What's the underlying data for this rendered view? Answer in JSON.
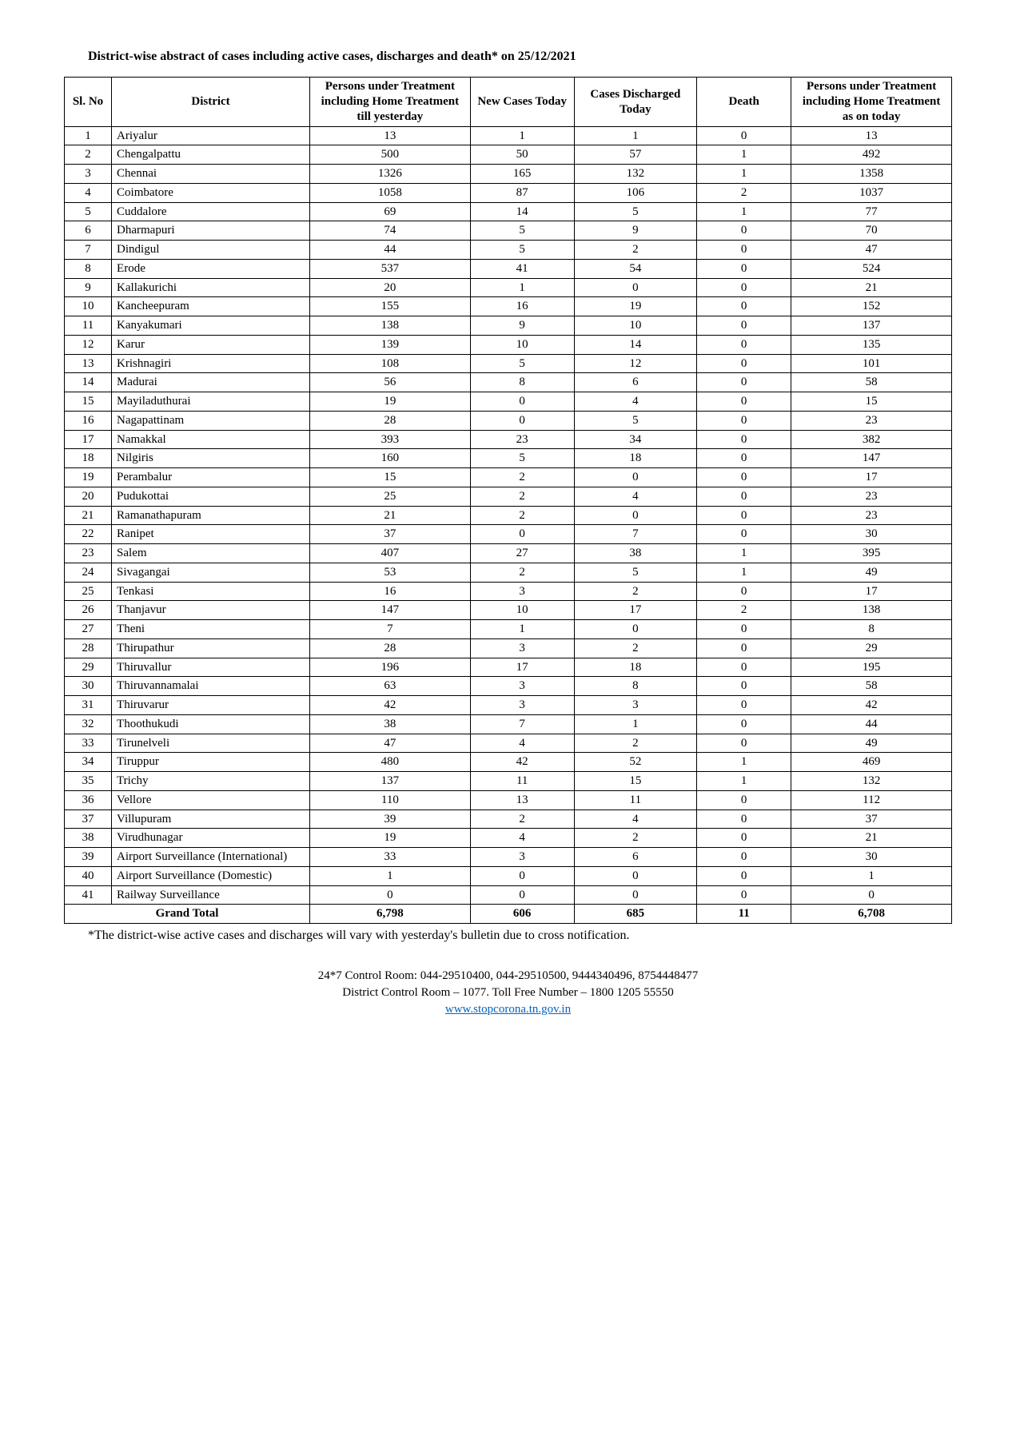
{
  "title": "District-wise abstract of cases including active cases, discharges and death* on 25/12/2021",
  "columns": [
    "Sl. No",
    "District",
    "Persons under Treatment including Home Treatment till yesterday",
    "New Cases Today",
    "Cases Discharged Today",
    "Death",
    "Persons under Treatment including Home Treatment as on today"
  ],
  "rows": [
    {
      "sl": "1",
      "district": "Ariyalur",
      "a": "13",
      "b": "1",
      "c": "1",
      "d": "0",
      "e": "13"
    },
    {
      "sl": "2",
      "district": "Chengalpattu",
      "a": "500",
      "b": "50",
      "c": "57",
      "d": "1",
      "e": "492"
    },
    {
      "sl": "3",
      "district": "Chennai",
      "a": "1326",
      "b": "165",
      "c": "132",
      "d": "1",
      "e": "1358"
    },
    {
      "sl": "4",
      "district": "Coimbatore",
      "a": "1058",
      "b": "87",
      "c": "106",
      "d": "2",
      "e": "1037"
    },
    {
      "sl": "5",
      "district": "Cuddalore",
      "a": "69",
      "b": "14",
      "c": "5",
      "d": "1",
      "e": "77"
    },
    {
      "sl": "6",
      "district": "Dharmapuri",
      "a": "74",
      "b": "5",
      "c": "9",
      "d": "0",
      "e": "70"
    },
    {
      "sl": "7",
      "district": "Dindigul",
      "a": "44",
      "b": "5",
      "c": "2",
      "d": "0",
      "e": "47"
    },
    {
      "sl": "8",
      "district": "Erode",
      "a": "537",
      "b": "41",
      "c": "54",
      "d": "0",
      "e": "524"
    },
    {
      "sl": "9",
      "district": "Kallakurichi",
      "a": "20",
      "b": "1",
      "c": "0",
      "d": "0",
      "e": "21"
    },
    {
      "sl": "10",
      "district": "Kancheepuram",
      "a": "155",
      "b": "16",
      "c": "19",
      "d": "0",
      "e": "152"
    },
    {
      "sl": "11",
      "district": "Kanyakumari",
      "a": "138",
      "b": "9",
      "c": "10",
      "d": "0",
      "e": "137"
    },
    {
      "sl": "12",
      "district": "Karur",
      "a": "139",
      "b": "10",
      "c": "14",
      "d": "0",
      "e": "135"
    },
    {
      "sl": "13",
      "district": "Krishnagiri",
      "a": "108",
      "b": "5",
      "c": "12",
      "d": "0",
      "e": "101"
    },
    {
      "sl": "14",
      "district": "Madurai",
      "a": "56",
      "b": "8",
      "c": "6",
      "d": "0",
      "e": "58"
    },
    {
      "sl": "15",
      "district": "Mayiladuthurai",
      "a": "19",
      "b": "0",
      "c": "4",
      "d": "0",
      "e": "15"
    },
    {
      "sl": "16",
      "district": "Nagapattinam",
      "a": "28",
      "b": "0",
      "c": "5",
      "d": "0",
      "e": "23"
    },
    {
      "sl": "17",
      "district": "Namakkal",
      "a": "393",
      "b": "23",
      "c": "34",
      "d": "0",
      "e": "382"
    },
    {
      "sl": "18",
      "district": "Nilgiris",
      "a": "160",
      "b": "5",
      "c": "18",
      "d": "0",
      "e": "147"
    },
    {
      "sl": "19",
      "district": "Perambalur",
      "a": "15",
      "b": "2",
      "c": "0",
      "d": "0",
      "e": "17"
    },
    {
      "sl": "20",
      "district": "Pudukottai",
      "a": "25",
      "b": "2",
      "c": "4",
      "d": "0",
      "e": "23"
    },
    {
      "sl": "21",
      "district": "Ramanathapuram",
      "a": "21",
      "b": "2",
      "c": "0",
      "d": "0",
      "e": "23"
    },
    {
      "sl": "22",
      "district": "Ranipet",
      "a": "37",
      "b": "0",
      "c": "7",
      "d": "0",
      "e": "30"
    },
    {
      "sl": "23",
      "district": "Salem",
      "a": "407",
      "b": "27",
      "c": "38",
      "d": "1",
      "e": "395"
    },
    {
      "sl": "24",
      "district": "Sivagangai",
      "a": "53",
      "b": "2",
      "c": "5",
      "d": "1",
      "e": "49"
    },
    {
      "sl": "25",
      "district": "Tenkasi",
      "a": "16",
      "b": "3",
      "c": "2",
      "d": "0",
      "e": "17"
    },
    {
      "sl": "26",
      "district": "Thanjavur",
      "a": "147",
      "b": "10",
      "c": "17",
      "d": "2",
      "e": "138"
    },
    {
      "sl": "27",
      "district": "Theni",
      "a": "7",
      "b": "1",
      "c": "0",
      "d": "0",
      "e": "8"
    },
    {
      "sl": "28",
      "district": "Thirupathur",
      "a": "28",
      "b": "3",
      "c": "2",
      "d": "0",
      "e": "29"
    },
    {
      "sl": "29",
      "district": "Thiruvallur",
      "a": "196",
      "b": "17",
      "c": "18",
      "d": "0",
      "e": "195"
    },
    {
      "sl": "30",
      "district": "Thiruvannamalai",
      "a": "63",
      "b": "3",
      "c": "8",
      "d": "0",
      "e": "58"
    },
    {
      "sl": "31",
      "district": "Thiruvarur",
      "a": "42",
      "b": "3",
      "c": "3",
      "d": "0",
      "e": "42"
    },
    {
      "sl": "32",
      "district": "Thoothukudi",
      "a": "38",
      "b": "7",
      "c": "1",
      "d": "0",
      "e": "44"
    },
    {
      "sl": "33",
      "district": "Tirunelveli",
      "a": "47",
      "b": "4",
      "c": "2",
      "d": "0",
      "e": "49"
    },
    {
      "sl": "34",
      "district": "Tiruppur",
      "a": "480",
      "b": "42",
      "c": "52",
      "d": "1",
      "e": "469"
    },
    {
      "sl": "35",
      "district": "Trichy",
      "a": "137",
      "b": "11",
      "c": "15",
      "d": "1",
      "e": "132"
    },
    {
      "sl": "36",
      "district": "Vellore",
      "a": "110",
      "b": "13",
      "c": "11",
      "d": "0",
      "e": "112"
    },
    {
      "sl": "37",
      "district": "Villupuram",
      "a": "39",
      "b": "2",
      "c": "4",
      "d": "0",
      "e": "37"
    },
    {
      "sl": "38",
      "district": "Virudhunagar",
      "a": "19",
      "b": "4",
      "c": "2",
      "d": "0",
      "e": "21"
    },
    {
      "sl": "39",
      "district": "Airport Surveillance (International)",
      "a": "33",
      "b": "3",
      "c": "6",
      "d": "0",
      "e": "30"
    },
    {
      "sl": "40",
      "district": "Airport Surveillance (Domestic)",
      "a": "1",
      "b": "0",
      "c": "0",
      "d": "0",
      "e": "1"
    },
    {
      "sl": "41",
      "district": "Railway Surveillance",
      "a": "0",
      "b": "0",
      "c": "0",
      "d": "0",
      "e": "0"
    }
  ],
  "total": {
    "label": "Grand Total",
    "a": "6,798",
    "b": "606",
    "c": "685",
    "d": "11",
    "e": "6,708"
  },
  "footnote": "*The district-wise active cases and discharges will vary with yesterday's bulletin due to cross notification.",
  "footer": {
    "line1": "24*7 Control Room: 044-29510400, 044-29510500, 9444340496, 8754448477",
    "line2": "District Control Room – 1077. Toll Free Number – 1800 1205 55550",
    "url": "www.stopcorona.tn.gov.in"
  },
  "style": {
    "font_family": "Bookman Old Style, Georgia, serif",
    "title_fontsize_pt": 12,
    "body_fontsize_pt": 11,
    "border_color": "#000000",
    "text_color": "#000000",
    "link_color": "#0563c1",
    "background_color": "#ffffff",
    "col_widths_pct": [
      5,
      21,
      17,
      11,
      13,
      10,
      17
    ],
    "col_alignments": [
      "center",
      "left",
      "center",
      "center",
      "center",
      "center",
      "center"
    ]
  }
}
